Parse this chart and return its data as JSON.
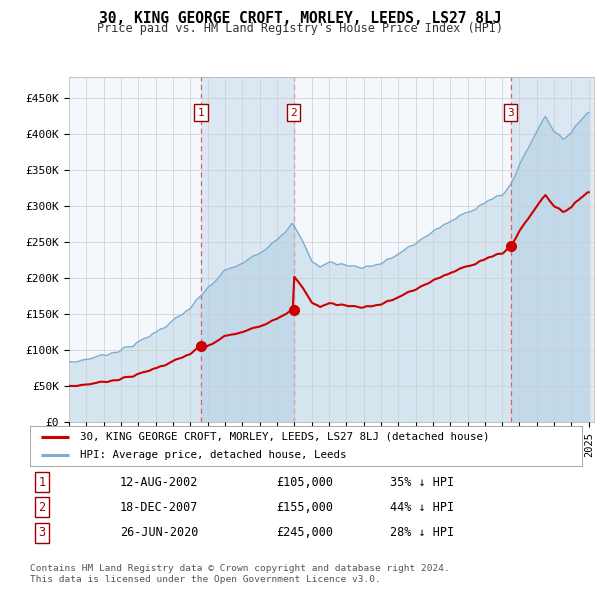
{
  "title": "30, KING GEORGE CROFT, MORLEY, LEEDS, LS27 8LJ",
  "subtitle": "Price paid vs. HM Land Registry's House Price Index (HPI)",
  "sale_prices": [
    105000,
    155000,
    245000
  ],
  "sale_labels": [
    "1",
    "2",
    "3"
  ],
  "sale_pct": [
    "35% ↓ HPI",
    "44% ↓ HPI",
    "28% ↓ HPI"
  ],
  "sale_date_strs": [
    "12-AUG-2002",
    "18-DEC-2007",
    "26-JUN-2020"
  ],
  "sale_price_strs": [
    "£105,000",
    "£155,000",
    "£245,000"
  ],
  "red_line_color": "#cc0000",
  "blue_line_color": "#7aadcf",
  "shade_color": "#dbe8f4",
  "dashed_line_color": "#e06060",
  "yticks": [
    0,
    50000,
    100000,
    150000,
    200000,
    250000,
    300000,
    350000,
    400000,
    450000
  ],
  "ytick_labels": [
    "£0",
    "£50K",
    "£100K",
    "£150K",
    "£200K",
    "£250K",
    "£300K",
    "£350K",
    "£400K",
    "£450K"
  ],
  "legend_entry1": "30, KING GEORGE CROFT, MORLEY, LEEDS, LS27 8LJ (detached house)",
  "legend_entry2": "HPI: Average price, detached house, Leeds",
  "footer1": "Contains HM Land Registry data © Crown copyright and database right 2024.",
  "footer2": "This data is licensed under the Open Government Licence v3.0.",
  "plot_bg_color": "#f4f8fc"
}
